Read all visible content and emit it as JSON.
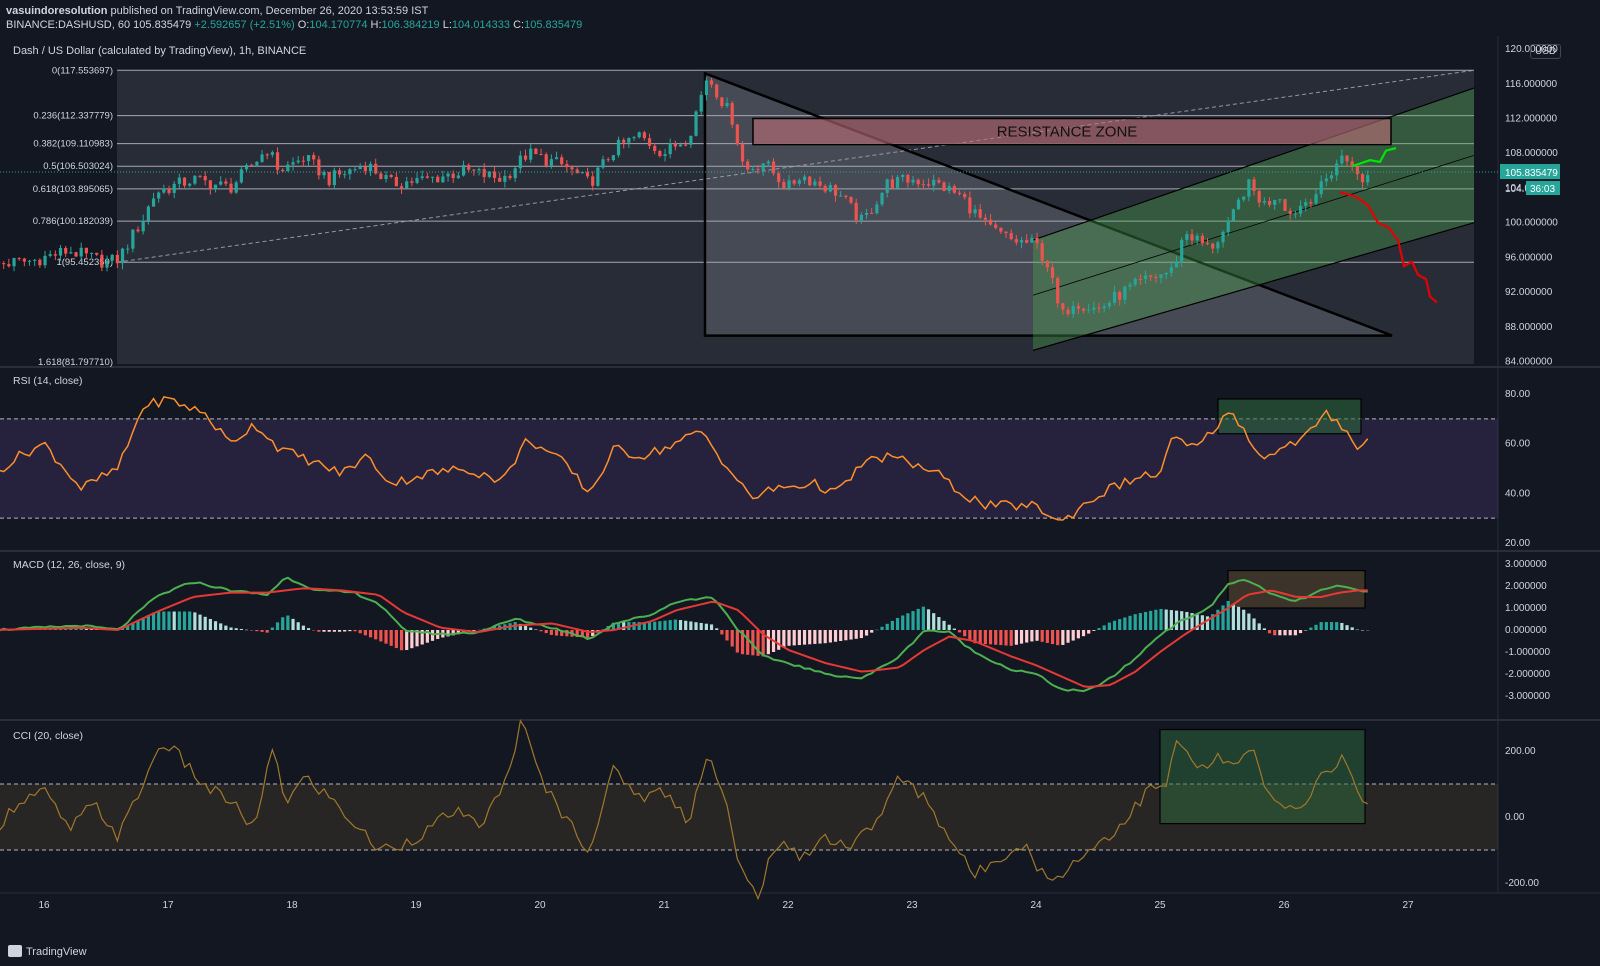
{
  "header": {
    "publisher": "vasuindoresolution",
    "published_text": "published on TradingView.com, December 26, 2020 13:53:59 IST",
    "symbol": "BINANCE:DASHUSD, 60",
    "last": "105.835479",
    "change": "+2.592657 (+2.51%)",
    "o_label": "O:",
    "o": "104.170774",
    "h_label": "H:",
    "h": "106.384219",
    "l_label": "L:",
    "l": "104.014333",
    "c_label": "C:",
    "c": "105.835479"
  },
  "main_title": "Dash / US Dollar (calculated by TradingView), 1h, BINANCE",
  "currency": "USD",
  "price_tag": "105.835479",
  "countdown_tag": "36:03",
  "peek_label": "104.0",
  "resistance_label": "RESISTANCE ZONE",
  "footer_brand": "TradingView",
  "colors": {
    "up": "#26a69a",
    "down": "#ef5350",
    "bg": "#131722",
    "rsi": "#ff8f2b",
    "macd": "#4caf50",
    "signal": "#e53935",
    "cci": "#a0782a",
    "green_proj": "#00e600",
    "red_proj": "#e60000"
  },
  "chart_data": [
    {
      "type": "candlestick",
      "name": "price",
      "y_ticks": [
        "120.000000",
        "116.000000",
        "112.000000",
        "108.000000",
        "104.000000",
        "100.000000",
        "96.000000",
        "92.000000",
        "88.000000",
        "84.000000"
      ],
      "ylim": [
        83.5,
        121.5
      ],
      "x_ticks": [
        "16",
        "17",
        "18",
        "19",
        "20",
        "21",
        "22",
        "23",
        "24",
        "25",
        "26",
        "27"
      ],
      "fib_levels": [
        {
          "label": "0(117.553697)",
          "value": 117.553697
        },
        {
          "label": "0.236(112.337779)",
          "value": 112.337779
        },
        {
          "label": "0.382(109.110983)",
          "value": 109.110983
        },
        {
          "label": "0.5(106.503024)",
          "value": 106.503024
        },
        {
          "label": "0.618(103.895065)",
          "value": 103.895065
        },
        {
          "label": "0.786(100.182039)",
          "value": 100.182039
        },
        {
          "label": "1(95.452350)",
          "value": 95.45235
        }
      ],
      "fib_extension_label": "1.618(81.797710)",
      "close_anchors": [
        [
          15.6,
          95.2
        ],
        [
          15.9,
          95.6
        ],
        [
          16.2,
          96.8
        ],
        [
          16.5,
          95.4
        ],
        [
          16.6,
          95.8
        ],
        [
          16.8,
          100.5
        ],
        [
          16.9,
          103.5
        ],
        [
          17.2,
          105.0
        ],
        [
          17.5,
          104.0
        ],
        [
          17.8,
          108.5
        ],
        [
          17.9,
          106.0
        ],
        [
          18.1,
          107.5
        ],
        [
          18.3,
          105.0
        ],
        [
          18.6,
          106.8
        ],
        [
          18.8,
          104.5
        ],
        [
          19.1,
          105.0
        ],
        [
          19.4,
          106.0
        ],
        [
          19.7,
          105.0
        ],
        [
          19.9,
          108.0
        ],
        [
          20.2,
          106.5
        ],
        [
          20.4,
          104.5
        ],
        [
          20.6,
          108.5
        ],
        [
          20.8,
          110.0
        ],
        [
          21.0,
          108.0
        ],
        [
          21.2,
          110.0
        ],
        [
          21.35,
          117.0
        ],
        [
          21.55,
          112.0
        ],
        [
          21.65,
          106.0
        ],
        [
          21.8,
          107.0
        ],
        [
          22.0,
          104.0
        ],
        [
          22.1,
          105.5
        ],
        [
          22.4,
          103.5
        ],
        [
          22.6,
          100.0
        ],
        [
          22.8,
          104.5
        ],
        [
          23.0,
          105.0
        ],
        [
          23.2,
          104.5
        ],
        [
          23.4,
          103.0
        ],
        [
          23.6,
          99.5
        ],
        [
          23.8,
          98.0
        ],
        [
          24.0,
          97.5
        ],
        [
          24.1,
          95.0
        ],
        [
          24.2,
          89.0
        ],
        [
          24.3,
          91.0
        ],
        [
          24.5,
          90.0
        ],
        [
          24.7,
          92.0
        ],
        [
          24.9,
          93.5
        ],
        [
          25.1,
          94.5
        ],
        [
          25.2,
          99.0
        ],
        [
          25.4,
          97.0
        ],
        [
          25.55,
          99.5
        ],
        [
          25.7,
          104.5
        ],
        [
          25.85,
          102.0
        ],
        [
          25.95,
          103.5
        ],
        [
          26.05,
          101.0
        ],
        [
          26.3,
          104.0
        ],
        [
          26.45,
          107.5
        ],
        [
          26.55,
          107.0
        ],
        [
          26.62,
          104.0
        ],
        [
          26.67,
          105.835
        ]
      ]
    },
    {
      "type": "line",
      "name": "RSI (14, close)",
      "y_ticks": [
        "80.00",
        "60.00",
        "40.00",
        "20.00"
      ],
      "ylim": [
        20,
        80
      ],
      "bands": [
        70,
        30
      ],
      "anchors": [
        [
          15.6,
          48
        ],
        [
          15.8,
          55
        ],
        [
          16.0,
          60
        ],
        [
          16.3,
          42
        ],
        [
          16.6,
          50
        ],
        [
          16.8,
          75
        ],
        [
          17.0,
          78
        ],
        [
          17.3,
          72
        ],
        [
          17.5,
          60
        ],
        [
          17.7,
          68
        ],
        [
          17.9,
          58
        ],
        [
          18.2,
          52
        ],
        [
          18.4,
          48
        ],
        [
          18.6,
          55
        ],
        [
          18.8,
          44
        ],
        [
          19.1,
          48
        ],
        [
          19.4,
          50
        ],
        [
          19.7,
          45
        ],
        [
          19.9,
          62
        ],
        [
          20.2,
          52
        ],
        [
          20.4,
          40
        ],
        [
          20.6,
          58
        ],
        [
          20.8,
          55
        ],
        [
          21.0,
          58
        ],
        [
          21.3,
          65
        ],
        [
          21.55,
          48
        ],
        [
          21.7,
          38
        ],
        [
          21.9,
          42
        ],
        [
          22.2,
          44
        ],
        [
          22.4,
          40
        ],
        [
          22.6,
          52
        ],
        [
          22.8,
          55
        ],
        [
          23.0,
          52
        ],
        [
          23.2,
          48
        ],
        [
          23.4,
          40
        ],
        [
          23.6,
          35
        ],
        [
          23.8,
          35
        ],
        [
          24.0,
          35
        ],
        [
          24.2,
          28
        ],
        [
          24.4,
          36
        ],
        [
          24.6,
          42
        ],
        [
          24.8,
          46
        ],
        [
          25.0,
          48
        ],
        [
          25.1,
          62
        ],
        [
          25.3,
          58
        ],
        [
          25.5,
          70
        ],
        [
          25.6,
          72
        ],
        [
          25.8,
          55
        ],
        [
          26.0,
          58
        ],
        [
          26.2,
          64
        ],
        [
          26.35,
          72
        ],
        [
          26.5,
          66
        ],
        [
          26.6,
          58
        ],
        [
          26.67,
          61
        ]
      ]
    },
    {
      "type": "macd",
      "name": "MACD (12, 26, close, 9)",
      "y_ticks": [
        "3.000000",
        "2.000000",
        "1.000000",
        "0.000000",
        "-1.000000",
        "-2.000000",
        "-3.000000"
      ],
      "ylim": [
        -3.5,
        3.5
      ],
      "macd": [
        [
          15.6,
          0.0
        ],
        [
          16.3,
          0.2
        ],
        [
          16.6,
          0.0
        ],
        [
          16.9,
          1.5
        ],
        [
          17.2,
          2.2
        ],
        [
          17.5,
          1.8
        ],
        [
          17.8,
          1.6
        ],
        [
          17.95,
          2.4
        ],
        [
          18.2,
          1.8
        ],
        [
          18.5,
          1.7
        ],
        [
          18.7,
          1.2
        ],
        [
          18.9,
          0.0
        ],
        [
          19.2,
          -0.2
        ],
        [
          19.5,
          -0.1
        ],
        [
          19.8,
          0.5
        ],
        [
          20.1,
          0.1
        ],
        [
          20.4,
          -0.4
        ],
        [
          20.6,
          0.3
        ],
        [
          20.9,
          0.7
        ],
        [
          21.1,
          1.3
        ],
        [
          21.4,
          1.5
        ],
        [
          21.6,
          0.0
        ],
        [
          21.8,
          -1.2
        ],
        [
          22.0,
          -1.5
        ],
        [
          22.3,
          -2.0
        ],
        [
          22.6,
          -2.2
        ],
        [
          22.9,
          -1.2
        ],
        [
          23.1,
          0.0
        ],
        [
          23.3,
          -0.1
        ],
        [
          23.5,
          -1.0
        ],
        [
          23.8,
          -1.8
        ],
        [
          24.0,
          -2.0
        ],
        [
          24.2,
          -2.7
        ],
        [
          24.4,
          -2.8
        ],
        [
          24.6,
          -2.2
        ],
        [
          24.8,
          -1.3
        ],
        [
          25.0,
          -0.2
        ],
        [
          25.2,
          0.5
        ],
        [
          25.4,
          1.0
        ],
        [
          25.55,
          2.1
        ],
        [
          25.7,
          2.3
        ],
        [
          25.9,
          1.6
        ],
        [
          26.1,
          1.3
        ],
        [
          26.3,
          1.8
        ],
        [
          26.45,
          2.0
        ],
        [
          26.6,
          1.8
        ]
      ],
      "signal": [
        [
          15.6,
          0.0
        ],
        [
          16.3,
          0.1
        ],
        [
          16.6,
          0.0
        ],
        [
          16.9,
          0.8
        ],
        [
          17.2,
          1.5
        ],
        [
          17.5,
          1.7
        ],
        [
          17.8,
          1.7
        ],
        [
          18.1,
          1.9
        ],
        [
          18.4,
          1.8
        ],
        [
          18.7,
          1.6
        ],
        [
          18.9,
          0.8
        ],
        [
          19.2,
          0.1
        ],
        [
          19.5,
          -0.1
        ],
        [
          19.8,
          0.2
        ],
        [
          20.1,
          0.3
        ],
        [
          20.4,
          -0.1
        ],
        [
          20.6,
          0.0
        ],
        [
          20.9,
          0.4
        ],
        [
          21.1,
          0.9
        ],
        [
          21.4,
          1.3
        ],
        [
          21.6,
          0.9
        ],
        [
          21.8,
          -0.2
        ],
        [
          22.0,
          -0.9
        ],
        [
          22.3,
          -1.5
        ],
        [
          22.6,
          -1.9
        ],
        [
          22.9,
          -1.7
        ],
        [
          23.1,
          -0.9
        ],
        [
          23.3,
          -0.3
        ],
        [
          23.5,
          -0.5
        ],
        [
          23.8,
          -1.2
        ],
        [
          24.0,
          -1.6
        ],
        [
          24.2,
          -2.1
        ],
        [
          24.4,
          -2.6
        ],
        [
          24.6,
          -2.5
        ],
        [
          24.8,
          -1.9
        ],
        [
          25.0,
          -1.0
        ],
        [
          25.2,
          -0.2
        ],
        [
          25.4,
          0.5
        ],
        [
          25.55,
          1.0
        ],
        [
          25.7,
          1.6
        ],
        [
          25.9,
          1.8
        ],
        [
          26.1,
          1.5
        ],
        [
          26.3,
          1.5
        ],
        [
          26.45,
          1.7
        ],
        [
          26.6,
          1.8
        ]
      ]
    },
    {
      "type": "line",
      "name": "CCI (20, close)",
      "y_ticks": [
        "200.00",
        "0.00",
        "-200.00"
      ],
      "ylim": [
        -300,
        300
      ],
      "bands": [
        100,
        -100
      ],
      "anchors": [
        [
          15.6,
          -40
        ],
        [
          15.8,
          50
        ],
        [
          16.0,
          80
        ],
        [
          16.2,
          -40
        ],
        [
          16.4,
          40
        ],
        [
          16.6,
          -60
        ],
        [
          16.8,
          100
        ],
        [
          16.95,
          230
        ],
        [
          17.1,
          180
        ],
        [
          17.3,
          90
        ],
        [
          17.5,
          50
        ],
        [
          17.7,
          -40
        ],
        [
          17.85,
          220
        ],
        [
          17.95,
          40
        ],
        [
          18.1,
          120
        ],
        [
          18.3,
          60
        ],
        [
          18.5,
          -20
        ],
        [
          18.7,
          -100
        ],
        [
          18.9,
          -80
        ],
        [
          19.1,
          -40
        ],
        [
          19.3,
          20
        ],
        [
          19.5,
          -30
        ],
        [
          19.7,
          80
        ],
        [
          19.85,
          290
        ],
        [
          20.0,
          120
        ],
        [
          20.2,
          0
        ],
        [
          20.4,
          -100
        ],
        [
          20.6,
          150
        ],
        [
          20.8,
          60
        ],
        [
          21.0,
          80
        ],
        [
          21.2,
          -10
        ],
        [
          21.35,
          200
        ],
        [
          21.5,
          40
        ],
        [
          21.6,
          -150
        ],
        [
          21.75,
          -240
        ],
        [
          21.9,
          -80
        ],
        [
          22.1,
          -120
        ],
        [
          22.3,
          -60
        ],
        [
          22.5,
          -90
        ],
        [
          22.7,
          -20
        ],
        [
          22.9,
          120
        ],
        [
          23.1,
          60
        ],
        [
          23.3,
          -60
        ],
        [
          23.5,
          -180
        ],
        [
          23.7,
          -120
        ],
        [
          23.9,
          -80
        ],
        [
          24.1,
          -200
        ],
        [
          24.3,
          -140
        ],
        [
          24.5,
          -80
        ],
        [
          24.7,
          -20
        ],
        [
          24.9,
          80
        ],
        [
          25.05,
          100
        ],
        [
          25.15,
          240
        ],
        [
          25.3,
          140
        ],
        [
          25.5,
          180
        ],
        [
          25.6,
          150
        ],
        [
          25.75,
          200
        ],
        [
          25.9,
          40
        ],
        [
          26.1,
          20
        ],
        [
          26.3,
          120
        ],
        [
          26.45,
          180
        ],
        [
          26.6,
          80
        ],
        [
          26.67,
          50
        ]
      ]
    }
  ],
  "indicator_labels": {
    "rsi": "RSI (14, close)",
    "macd": "MACD (12, 26, close, 9)",
    "cci": "CCI (20, close)"
  }
}
